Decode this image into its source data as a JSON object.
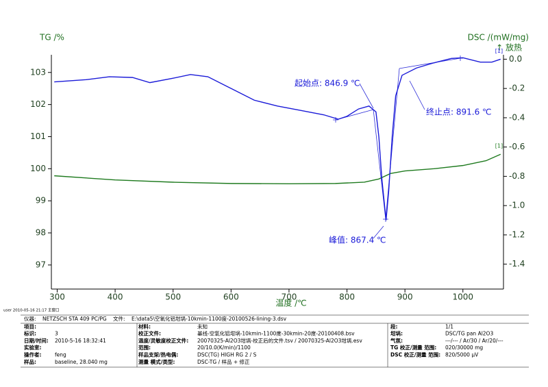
{
  "chart_data": {
    "type": "line",
    "x_label": "温度 /℃",
    "y_label": "TG /%",
    "y2_label": "DSC /(mW/mg)",
    "y2_note": "↑ 放热",
    "xlim": [
      290,
      1070
    ],
    "xticks": [
      300,
      400,
      500,
      600,
      700,
      800,
      900,
      1000
    ],
    "ylim": [
      96.25,
      103.55
    ],
    "yticks": [
      97,
      98,
      99,
      100,
      101,
      102,
      103
    ],
    "y2lim": [
      -1.57,
      0.03
    ],
    "y2ticks": [
      {
        "value": 0,
        "label": "0.0"
      },
      -0.2,
      -0.4,
      -0.6,
      -0.8,
      {
        "value": -1,
        "label": "-1.0"
      },
      -1.2,
      -1.4
    ],
    "series": [
      {
        "name": "[1]",
        "color": "#1e7a1e",
        "axis": "y",
        "x": [
          295,
          400,
          500,
          600,
          700,
          780,
          830,
          855,
          875,
          900,
          950,
          1000,
          1040,
          1065
        ],
        "values": [
          99.78,
          99.65,
          99.58,
          99.54,
          99.53,
          99.54,
          99.58,
          99.68,
          99.85,
          99.93,
          100.0,
          100.1,
          100.25,
          100.45
        ]
      },
      {
        "name": "[1]",
        "color": "#1a1ad8",
        "axis": "y2",
        "x": [
          295,
          350,
          390,
          430,
          460,
          500,
          530,
          560,
          600,
          640,
          680,
          720,
          760,
          785,
          800,
          820,
          838,
          850,
          855,
          860,
          867.4,
          872,
          878,
          884,
          895,
          920,
          950,
          980,
          1000,
          1030,
          1050,
          1065
        ],
        "values": [
          -0.155,
          -0.14,
          -0.12,
          -0.125,
          -0.16,
          -0.13,
          -0.105,
          -0.12,
          -0.2,
          -0.28,
          -0.32,
          -0.35,
          -0.38,
          -0.41,
          -0.39,
          -0.34,
          -0.32,
          -0.36,
          -0.53,
          -0.81,
          -1.1,
          -0.9,
          -0.53,
          -0.25,
          -0.11,
          -0.06,
          -0.025,
          0.005,
          0.01,
          -0.02,
          -0.02,
          0.0
        ]
      }
    ],
    "annotations": [
      "起始点: 846.9 ℃",
      "终止点: 891.6 ℃",
      "峰值: 867.4 ℃"
    ],
    "footer": "user  2010-05-16 21:17  主窗口"
  },
  "info": {
    "rows": [
      [
        "仪器:",
        "NETZSCH STA 409 PC/PG",
        "文件:",
        "E:\\data5\\空氧化铝坩埚-10kmin-1100度-20100526-lining-3.dsv"
      ],
      [
        "项目:",
        null,
        "材料:",
        "未知",
        "段:",
        "1/1"
      ],
      [
        "标识:",
        "3",
        "校正文件:",
        "基线-空氧化铝坩埚-10kmin-1100度-30kmin-20度-20100408.bsv",
        "坩埚:",
        "DSC/TG pan Al2O3"
      ],
      [
        "日期/时间:",
        "2010-5-16 18:32:41",
        "温度/灵敏度校正文件:",
        "20070325-Al2O3坩埚-校正后的文件.tsv / 20070325-Al2O3坩埚.esv",
        "气氛:",
        "---/--- / Ar/30 / Ar/20/---"
      ],
      [
        "实验室:",
        null,
        "范围:",
        "20/10.0(K/min)/1100",
        "TG 校正/测量 范围:",
        "020/30000 mg"
      ],
      [
        "操作者:",
        "feng",
        "样品支架/热电偶:",
        "DSC(TG) HIGH RG 2 / S",
        "DSC 校正/测量 范围:",
        "820/5000 μV"
      ],
      [
        "样品:",
        "baseline, 28.040 mg",
        "测量 模式/类型:",
        "DSC-TG / 样品 + 修正",
        null,
        null
      ]
    ]
  }
}
